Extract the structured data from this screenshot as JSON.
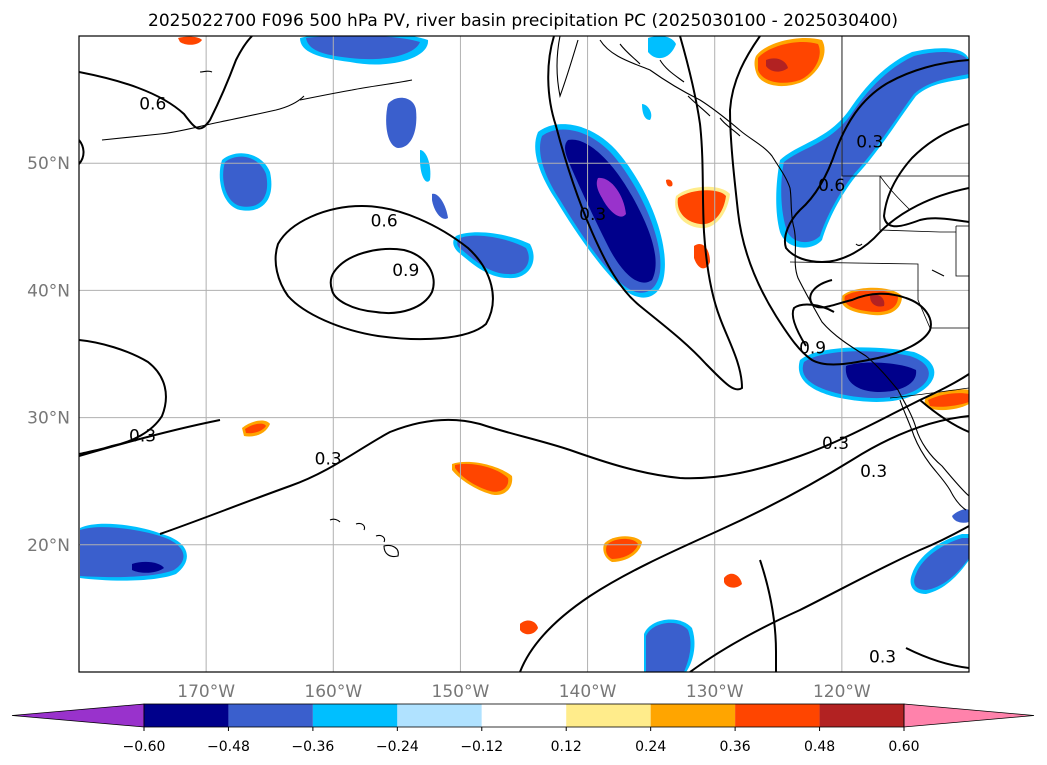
{
  "title": "2025022700 F096 500 hPa PV, river basin precipitation PC (2025030100 - 2025030400)",
  "map": {
    "lon_range": [
      -180,
      -110
    ],
    "lat_range": [
      10,
      60
    ],
    "lat_ticks": [
      {
        "value": 20,
        "label": "20°N"
      },
      {
        "value": 30,
        "label": "30°N"
      },
      {
        "value": 40,
        "label": "40°N"
      },
      {
        "value": 50,
        "label": "50°N"
      }
    ],
    "lon_ticks": [
      {
        "value": -170,
        "label": "170°W"
      },
      {
        "value": -160,
        "label": "160°W"
      },
      {
        "value": -150,
        "label": "150°W"
      },
      {
        "value": -140,
        "label": "140°W"
      },
      {
        "value": -130,
        "label": "130°W"
      },
      {
        "value": -120,
        "label": "120°W"
      }
    ],
    "grid": true
  },
  "colorbar": {
    "colors": [
      "#9932cc",
      "#00008b",
      "#3a5fcd",
      "#00bfff",
      "#b0e2ff",
      "#ffffff",
      "#ffec8b",
      "#ffa500",
      "#ff4500",
      "#b22222",
      "#ff82ab"
    ],
    "ticks": [
      "−0.60",
      "−0.48",
      "−0.36",
      "−0.24",
      "−0.12",
      "0.12",
      "0.24",
      "0.36",
      "0.48",
      "0.60"
    ],
    "extend": "both"
  },
  "contour_labels": [
    {
      "text": "0.6",
      "lon": -174.2,
      "lat": 54.7
    },
    {
      "text": "0.6",
      "lon": -156.0,
      "lat": 45.5
    },
    {
      "text": "0.9",
      "lon": -154.3,
      "lat": 41.6
    },
    {
      "text": "0.3",
      "lon": -139.6,
      "lat": 46.0
    },
    {
      "text": "0.3",
      "lon": -175.0,
      "lat": 28.6
    },
    {
      "text": "0.3",
      "lon": -160.4,
      "lat": 26.8
    },
    {
      "text": "0.9",
      "lon": -122.3,
      "lat": 35.5
    },
    {
      "text": "0.6",
      "lon": -120.8,
      "lat": 48.3
    },
    {
      "text": "0.3",
      "lon": -117.8,
      "lat": 51.7
    },
    {
      "text": "0.3",
      "lon": -120.5,
      "lat": 28.0
    },
    {
      "text": "0.3",
      "lon": -117.5,
      "lat": 25.8
    },
    {
      "text": "0.3",
      "lon": -116.8,
      "lat": 11.2
    }
  ]
}
